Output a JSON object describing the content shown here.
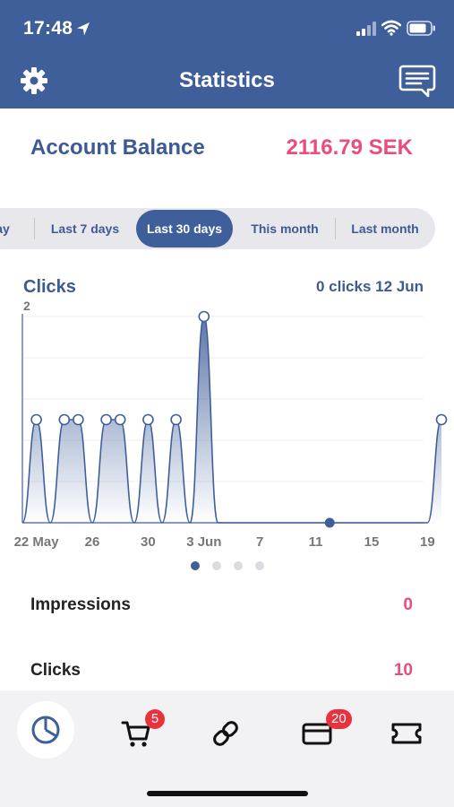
{
  "status_bar": {
    "time": "17:48"
  },
  "navbar": {
    "title": "Statistics"
  },
  "balance": {
    "label": "Account Balance",
    "value": "2116.79 SEK"
  },
  "periods": {
    "items": [
      "ay",
      "Last 7 days",
      "Last 30 days",
      "This month",
      "Last month"
    ],
    "selected": "Last 30 days"
  },
  "chart": {
    "title": "Clicks",
    "info": "0 clicks 12 Jun",
    "y_max_label": "2"
  },
  "chart_data": {
    "type": "area",
    "title": "Clicks",
    "x": [
      "21 May",
      "22 May",
      "23 May",
      "24 May",
      "25 May",
      "26 May",
      "27 May",
      "28 May",
      "29 May",
      "30 May",
      "31 May",
      "1 Jun",
      "2 Jun",
      "3 Jun",
      "4 Jun",
      "5 Jun",
      "6 Jun",
      "7 Jun",
      "8 Jun",
      "9 Jun",
      "10 Jun",
      "11 Jun",
      "12 Jun",
      "13 Jun",
      "14 Jun",
      "15 Jun",
      "16 Jun",
      "17 Jun",
      "18 Jun",
      "19 Jun",
      "20 Jun"
    ],
    "series": [
      {
        "values": [
          0,
          1,
          0,
          1,
          1,
          0,
          1,
          1,
          0,
          1,
          0,
          1,
          0,
          2,
          0,
          0,
          0,
          0,
          0,
          0,
          0,
          0,
          0,
          0,
          0,
          0,
          0,
          0,
          0,
          0,
          1
        ]
      }
    ],
    "tick_labels": [
      "22 May",
      "26",
      "30",
      "3 Jun",
      "7",
      "11",
      "15",
      "19"
    ],
    "ylim": [
      0,
      2
    ],
    "selected_point": "12 Jun",
    "grid": true
  },
  "pager": {
    "count": 4,
    "active": 0
  },
  "stats": [
    {
      "label": "Impressions",
      "value": "0"
    },
    {
      "label": "Clicks",
      "value": "10"
    }
  ],
  "tabbar": {
    "items": [
      {
        "icon": "pie-chart-icon"
      },
      {
        "icon": "cart-icon",
        "badge": "5"
      },
      {
        "icon": "link-icon"
      },
      {
        "icon": "card-icon",
        "badge": "20"
      },
      {
        "icon": "ticket-icon"
      }
    ]
  },
  "colors": {
    "brand": "#3f5f9a",
    "accent": "#e84d7e",
    "badge": "#e8323d"
  }
}
